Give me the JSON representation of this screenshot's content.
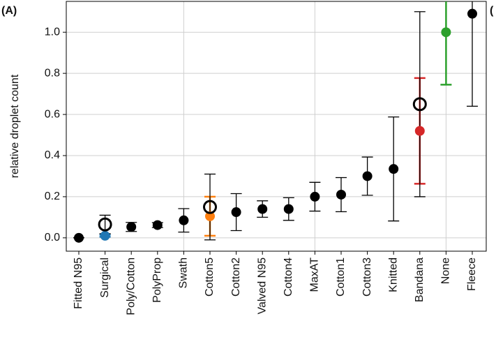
{
  "chart_data": {
    "type": "errorbar",
    "panel_label": "(A)",
    "next_panel_label": "(",
    "y_label": "relative droplet count",
    "categories": [
      "Fitted N95",
      "Surgical",
      "Poly/Cotton",
      "PolyProp",
      "Swath",
      "Cotton5",
      "Cotton2",
      "Valved N95",
      "Cotton4",
      "MaxAT",
      "Cotton1",
      "Cotton3",
      "Knitted",
      "Bandana",
      "None",
      "Fleece"
    ],
    "series": [
      {
        "marker": "filled",
        "values": [
          0.0,
          0.01,
          0.053,
          0.062,
          0.085,
          0.105,
          0.125,
          0.14,
          0.14,
          0.2,
          0.21,
          0.3,
          0.335,
          0.52,
          1.0,
          1.09
        ],
        "errors": [
          0.0,
          0.005,
          0.022,
          0.012,
          0.057,
          0.095,
          0.09,
          0.04,
          0.055,
          0.07,
          0.083,
          0.093,
          0.253,
          0.257,
          0.255,
          0.45
        ],
        "colors": [
          "#000000",
          "#1f77b4",
          "#000000",
          "#000000",
          "#000000",
          "#ff7f0e",
          "#000000",
          "#000000",
          "#000000",
          "#000000",
          "#000000",
          "#000000",
          "#000000",
          "#d62728",
          "#2ca02c",
          "#000000"
        ]
      },
      {
        "marker": "open",
        "values": [
          null,
          0.065,
          null,
          null,
          null,
          0.15,
          null,
          null,
          null,
          null,
          null,
          null,
          null,
          0.65,
          null,
          null
        ],
        "errors": [
          null,
          0.045,
          null,
          null,
          null,
          0.16,
          null,
          null,
          null,
          null,
          null,
          null,
          null,
          0.45,
          null,
          null
        ],
        "colors": [
          null,
          "#000000",
          null,
          null,
          null,
          "#000000",
          null,
          null,
          null,
          null,
          null,
          null,
          null,
          "#000000",
          null,
          null
        ]
      }
    ],
    "ylim": [
      -0.065,
      1.15
    ],
    "yticks": [
      {
        "value": 0,
        "label": "0.0"
      },
      0.2,
      0.4,
      0.6,
      0.8,
      {
        "value": 1,
        "label": "1.0"
      }
    ],
    "grid": true
  }
}
